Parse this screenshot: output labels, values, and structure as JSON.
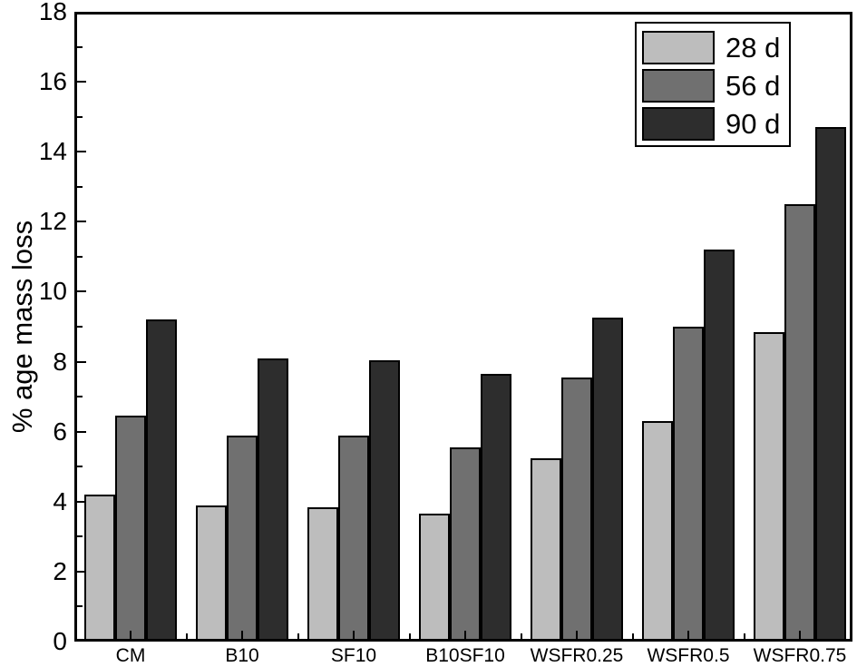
{
  "chart_data": {
    "type": "bar",
    "title": "",
    "xlabel": "",
    "ylabel": "% age mass loss",
    "ylim": [
      0,
      18
    ],
    "y_major_step": 2,
    "y_minor_step": 1,
    "grid": false,
    "legend_position": "top-right",
    "categories": [
      "CM",
      "B10",
      "SF10",
      "B10SF10",
      "WSFR0.25",
      "WSFR0.5",
      "WSFR0.75"
    ],
    "series": [
      {
        "name": "28 d",
        "color": "#bdbdbd",
        "values": [
          4.2,
          3.9,
          3.85,
          3.65,
          5.25,
          6.3,
          8.85
        ]
      },
      {
        "name": "56 d",
        "color": "#707070",
        "values": [
          6.45,
          5.9,
          5.9,
          5.55,
          7.55,
          9.0,
          12.5
        ]
      },
      {
        "name": "90 d",
        "color": "#2d2d2d",
        "values": [
          9.2,
          8.1,
          8.05,
          7.65,
          9.25,
          11.2,
          14.7
        ]
      }
    ],
    "y_tick_labels": [
      "0",
      "2",
      "4",
      "6",
      "8",
      "10",
      "12",
      "14",
      "16",
      "18"
    ],
    "axis_color": "#000000",
    "bar_border_color": "#000000",
    "background_color": "#ffffff"
  }
}
